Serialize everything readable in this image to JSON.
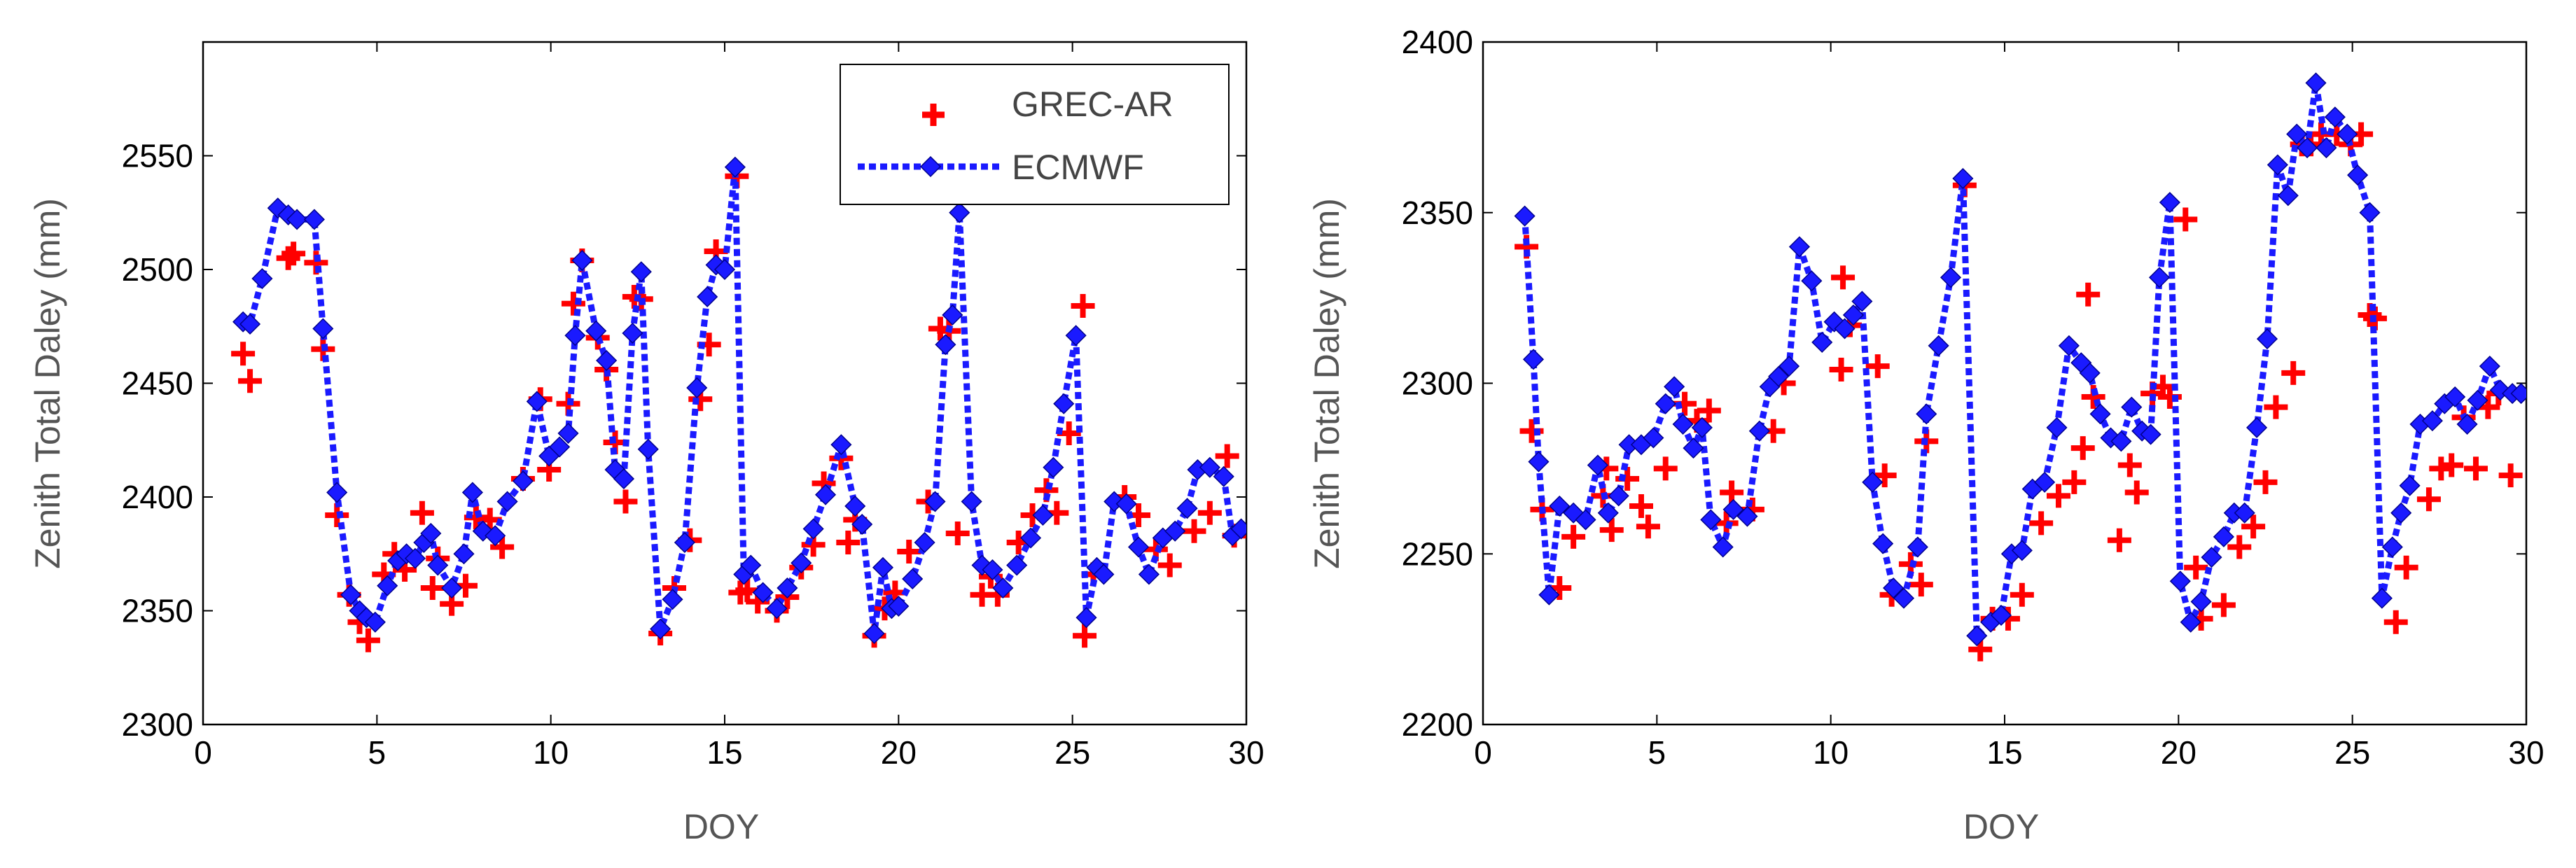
{
  "figure_title": "",
  "chart_data": [
    {
      "type": "line",
      "title": "",
      "xlabel": "DOY",
      "ylabel": "Zenith Total Daley (mm)",
      "xlim": [
        0,
        30
      ],
      "ylim": [
        2300,
        2600
      ],
      "xticks": [
        "0",
        "5",
        "10",
        "15",
        "20",
        "25",
        "30"
      ],
      "yticks": [
        "2300",
        "2350",
        "2400",
        "2450",
        "2500",
        "2550"
      ],
      "grid": false,
      "legend_position": "top-right",
      "series": [
        {
          "name": "GREC-AR",
          "color": "#ff0000",
          "marker": "plus",
          "line": "none",
          "x": [
            1.15,
            1.35,
            2.45,
            2.6,
            3.25,
            3.45,
            3.85,
            4.2,
            4.5,
            4.75,
            5.2,
            5.5,
            5.8,
            6.3,
            6.6,
            6.75,
            7.15,
            7.55,
            7.85,
            8.25,
            8.6,
            9.2,
            9.7,
            9.95,
            10.5,
            10.65,
            10.9,
            11.35,
            11.6,
            11.85,
            12.15,
            12.4,
            12.6,
            13.15,
            13.55,
            14.0,
            14.3,
            14.55,
            14.75,
            15.35,
            15.45,
            15.65,
            15.95,
            16.5,
            16.8,
            17.2,
            17.55,
            17.85,
            18.35,
            18.55,
            18.75,
            19.3,
            19.6,
            19.9,
            20.3,
            20.85,
            21.2,
            21.45,
            21.7,
            22.4,
            22.65,
            22.85,
            23.45,
            23.85,
            24.25,
            24.55,
            24.9,
            25.3,
            25.35,
            25.6,
            26.5,
            26.9,
            27.4,
            27.8,
            28.5,
            28.95,
            29.45,
            29.65
          ],
          "y": [
            2463,
            2451,
            2505,
            2507,
            2503,
            2465,
            2392,
            2357,
            2345,
            2337,
            2366,
            2375,
            2368,
            2393,
            2360,
            2373,
            2353,
            2361,
            2391,
            2390,
            2378,
            2408,
            2443,
            2412,
            2441,
            2485,
            2504,
            2470,
            2456,
            2424,
            2398,
            2488,
            2487,
            2340,
            2360,
            2381,
            2443,
            2467,
            2508,
            2541,
            2358,
            2359,
            2354,
            2350,
            2356,
            2369,
            2379,
            2406,
            2417,
            2380,
            2390,
            2339,
            2351,
            2358,
            2376,
            2398,
            2474,
            2473,
            2384,
            2357,
            2365,
            2357,
            2380,
            2392,
            2403,
            2393,
            2428,
            2484,
            2339,
            2366,
            2400,
            2392,
            2377,
            2370,
            2385,
            2393,
            2418,
            2383
          ]
        },
        {
          "name": "ECMWF",
          "color": "#1a1aff",
          "marker": "diamond",
          "line": "dotted",
          "x": [
            1.15,
            1.35,
            1.7,
            2.15,
            2.45,
            2.7,
            3.2,
            3.45,
            3.85,
            4.25,
            4.5,
            4.7,
            4.95,
            5.3,
            5.6,
            5.85,
            6.1,
            6.35,
            6.55,
            6.75,
            7.15,
            7.5,
            7.75,
            8.05,
            8.4,
            8.75,
            9.2,
            9.6,
            9.95,
            10.25,
            10.5,
            10.7,
            10.9,
            11.3,
            11.6,
            11.85,
            12.1,
            12.35,
            12.6,
            12.8,
            13.15,
            13.5,
            13.85,
            14.2,
            14.5,
            14.75,
            15.0,
            15.3,
            15.55,
            15.75,
            16.1,
            16.5,
            16.8,
            17.2,
            17.55,
            17.9,
            18.35,
            18.75,
            18.95,
            19.3,
            19.55,
            19.8,
            20.0,
            20.4,
            20.75,
            21.05,
            21.35,
            21.55,
            21.75,
            22.1,
            22.4,
            22.7,
            23.0,
            23.4,
            23.8,
            24.15,
            24.45,
            24.75,
            25.1,
            25.4,
            25.7,
            25.9,
            26.2,
            26.55,
            26.9,
            27.2,
            27.6,
            27.95,
            28.3,
            28.6,
            28.95,
            29.35,
            29.6,
            29.85
          ],
          "y": [
            2477,
            2476,
            2496,
            2527,
            2524,
            2522,
            2522,
            2474,
            2402,
            2357,
            2350,
            2347,
            2345,
            2361,
            2372,
            2375,
            2373,
            2380,
            2384,
            2370,
            2360,
            2375,
            2402,
            2385,
            2383,
            2398,
            2407,
            2442,
            2418,
            2422,
            2428,
            2471,
            2504,
            2473,
            2460,
            2412,
            2408,
            2472,
            2499,
            2421,
            2342,
            2355,
            2380,
            2448,
            2488,
            2502,
            2500,
            2545,
            2366,
            2370,
            2358,
            2351,
            2360,
            2371,
            2386,
            2401,
            2423,
            2396,
            2388,
            2340,
            2369,
            2351,
            2352,
            2364,
            2380,
            2398,
            2467,
            2480,
            2525,
            2398,
            2370,
            2368,
            2360,
            2370,
            2382,
            2392,
            2413,
            2441,
            2471,
            2347,
            2369,
            2366,
            2398,
            2397,
            2378,
            2366,
            2382,
            2385,
            2395,
            2412,
            2413,
            2409,
            2383,
            2386
          ]
        }
      ]
    },
    {
      "type": "line",
      "title": "",
      "xlabel": "DOY",
      "ylabel": "Zenith Total Daley (mm)",
      "xlim": [
        0,
        30
      ],
      "ylim": [
        2200,
        2400
      ],
      "xticks": [
        "0",
        "5",
        "10",
        "15",
        "20",
        "25",
        "30"
      ],
      "yticks": [
        "2200",
        "2250",
        "2300",
        "2350",
        "2400"
      ],
      "grid": false,
      "series": [
        {
          "name": "GREC-AR",
          "color": "#ff0000",
          "marker": "plus",
          "line": "none",
          "x": [
            1.25,
            1.4,
            1.7,
            2.2,
            2.6,
            3.45,
            3.55,
            3.7,
            4.15,
            4.55,
            4.75,
            5.25,
            5.8,
            6.15,
            6.5,
            7.0,
            7.15,
            7.75,
            8.35,
            8.65,
            10.3,
            10.35,
            10.55,
            11.35,
            11.55,
            11.75,
            12.3,
            12.6,
            12.75,
            13.85,
            14.3,
            14.65,
            15.1,
            15.5,
            16.05,
            16.55,
            17.0,
            17.25,
            17.4,
            17.55,
            18.3,
            18.6,
            18.8,
            19.25,
            19.55,
            19.75,
            20.2,
            20.5,
            20.65,
            21.3,
            21.75,
            22.15,
            22.5,
            22.8,
            23.3,
            23.55,
            23.8,
            24.1,
            24.55,
            24.95,
            25.25,
            25.5,
            25.65,
            26.25,
            26.55,
            27.2,
            27.55,
            27.85,
            28.2,
            28.55,
            28.9,
            29.2,
            29.55
          ],
          "y": [
            2340,
            2286,
            2263,
            2240,
            2255,
            2267,
            2275,
            2257,
            2272,
            2264,
            2258,
            2275,
            2294,
            2289,
            2292,
            2259,
            2268,
            2263,
            2286,
            2300,
            2304,
            2331,
            2317,
            2305,
            2273,
            2238,
            2247,
            2241,
            2283,
            2358,
            2222,
            2231,
            2231,
            2238,
            2259,
            2267,
            2271,
            2281,
            2326,
            2296,
            2254,
            2276,
            2268,
            2297,
            2299,
            2296,
            2348,
            2246,
            2231,
            2235,
            2252,
            2258,
            2271,
            2293,
            2303,
            2370,
            2370,
            2373,
            2373,
            2370,
            2373,
            2320,
            2319,
            2230,
            2246,
            2266,
            2275,
            2276,
            2290,
            2275,
            2293,
            2297,
            2273
          ]
        },
        {
          "name": "ECMWF",
          "color": "#1a1aff",
          "marker": "diamond",
          "line": "dotted",
          "x": [
            1.2,
            1.45,
            1.6,
            1.9,
            2.2,
            2.6,
            2.95,
            3.3,
            3.6,
            3.9,
            4.2,
            4.55,
            4.9,
            5.25,
            5.5,
            5.75,
            6.05,
            6.3,
            6.55,
            6.9,
            7.2,
            7.6,
            7.95,
            8.25,
            8.5,
            8.8,
            9.1,
            9.45,
            9.75,
            10.1,
            10.4,
            10.65,
            10.9,
            11.2,
            11.5,
            11.8,
            12.1,
            12.5,
            12.75,
            13.1,
            13.45,
            13.8,
            14.2,
            14.6,
            14.9,
            15.2,
            15.5,
            15.8,
            16.15,
            16.5,
            16.85,
            17.2,
            17.45,
            17.75,
            18.05,
            18.35,
            18.65,
            18.95,
            19.2,
            19.45,
            19.75,
            20.05,
            20.35,
            20.65,
            20.95,
            21.3,
            21.6,
            21.9,
            22.25,
            22.55,
            22.85,
            23.15,
            23.4,
            23.7,
            23.95,
            24.25,
            24.5,
            24.85,
            25.15,
            25.5,
            25.85,
            26.15,
            26.4,
            26.65,
            26.95,
            27.3,
            27.65,
            27.95,
            28.3,
            28.6,
            28.95,
            29.25,
            29.6,
            29.85
          ],
          "y": [
            2349,
            2307,
            2277,
            2238,
            2264,
            2262,
            2260,
            2276,
            2262,
            2267,
            2282,
            2282,
            2284,
            2294,
            2299,
            2288,
            2281,
            2287,
            2260,
            2252,
            2263,
            2261,
            2286,
            2299,
            2302,
            2305,
            2340,
            2330,
            2312,
            2318,
            2316,
            2320,
            2324,
            2271,
            2253,
            2240,
            2237,
            2252,
            2291,
            2311,
            2331,
            2360,
            2226,
            2230,
            2232,
            2250,
            2251,
            2269,
            2271,
            2287,
            2311,
            2306,
            2303,
            2291,
            2284,
            2283,
            2293,
            2286,
            2285,
            2331,
            2353,
            2242,
            2230,
            2236,
            2249,
            2255,
            2262,
            2262,
            2287,
            2313,
            2364,
            2355,
            2373,
            2369,
            2388,
            2369,
            2378,
            2373,
            2361,
            2350,
            2237,
            2252,
            2262,
            2270,
            2288,
            2289,
            2294,
            2296,
            2288,
            2295,
            2305,
            2298,
            2297,
            2297
          ]
        }
      ]
    }
  ]
}
